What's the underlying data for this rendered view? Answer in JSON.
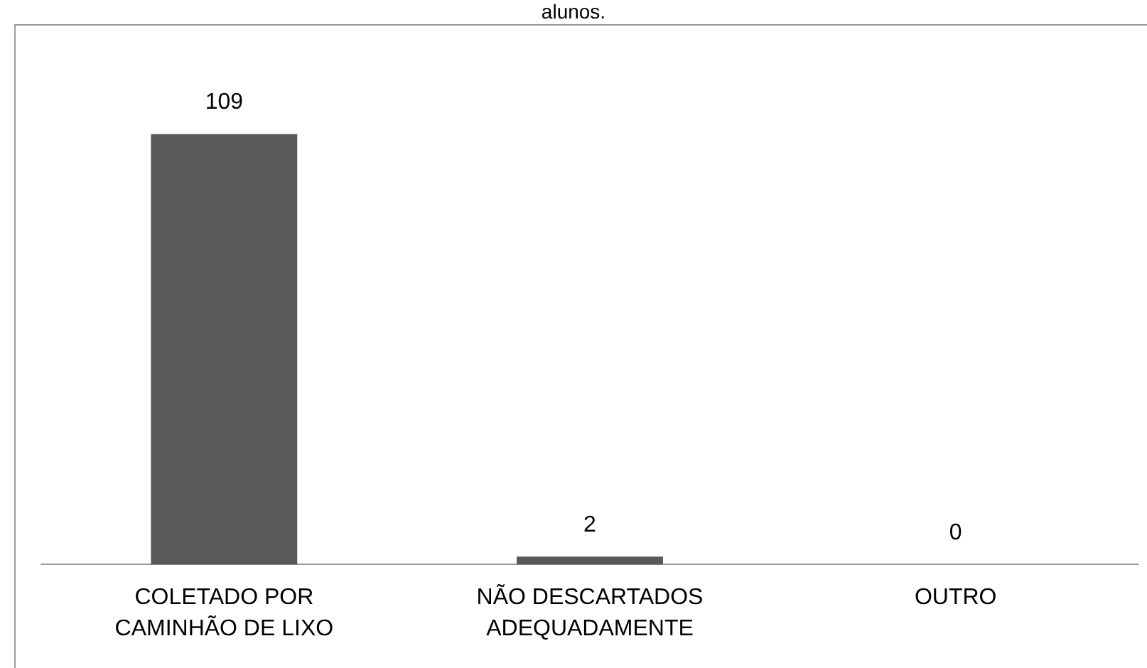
{
  "chart_data": {
    "type": "bar",
    "title": "alunos.",
    "categories": [
      "COLETADO POR CAMINHÃO DE LIXO",
      "NÃO DESCARTADOS ADEQUADAMENTE",
      "OUTRO"
    ],
    "values": [
      109,
      2,
      0
    ],
    "color": "#595959",
    "data_labels": true,
    "grid": false,
    "legend": false
  }
}
